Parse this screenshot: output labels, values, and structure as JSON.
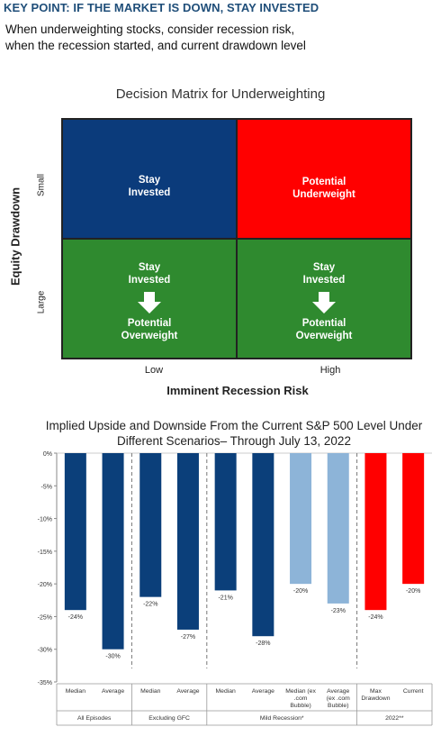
{
  "key_point": {
    "title": "KEY POINT: IF THE MARKET IS DOWN, STAY INVESTED",
    "subtitle_line1": "When underweighting stocks, consider recession risk,",
    "subtitle_line2": "when the recession started, and current drawdown level"
  },
  "matrix": {
    "title": "Decision Matrix for Underweighting",
    "y_axis_title": "Equity Drawdown",
    "y_small": "Small",
    "y_large": "Large",
    "x_low": "Low",
    "x_high": "High",
    "x_axis_title": "Imminent Recession Risk",
    "colors": {
      "blue": "#0b3b7b",
      "red": "#ff0000",
      "green": "#2f8a2f"
    },
    "cells": {
      "small_low": {
        "line1": "Stay",
        "line2": "Invested"
      },
      "small_high": {
        "line1": "Potential",
        "line2": "Underweight"
      },
      "large_low": {
        "line1": "Stay",
        "line2": "Invested",
        "line3": "Potential",
        "line4": "Overweight",
        "icon": "down-arrow-icon"
      },
      "large_high": {
        "line1": "Stay",
        "line2": "Invested",
        "line3": "Potential",
        "line4": "Overweight",
        "icon": "down-arrow-icon"
      }
    }
  },
  "chart_data": {
    "type": "bar",
    "title": "Implied Upside and Downside From the Current S&P 500 Level Under Different Scenarios– Through July 13, 2022",
    "ylim": [
      -35,
      0
    ],
    "yticks": [
      "0%",
      "-5%",
      "-10%",
      "-15%",
      "-20%",
      "-25%",
      "-30%",
      "-35%"
    ],
    "grid": false,
    "bars": [
      {
        "label": [
          "Median"
        ],
        "value": -24,
        "value_label": "-24%",
        "color": "#0b3f7a"
      },
      {
        "label": [
          "Average"
        ],
        "value": -30,
        "value_label": "-30%",
        "color": "#0b3f7a"
      },
      {
        "label": [
          "Median"
        ],
        "value": -22,
        "value_label": "-22%",
        "color": "#0b3f7a"
      },
      {
        "label": [
          "Average"
        ],
        "value": -27,
        "value_label": "-27%",
        "color": "#0b3f7a"
      },
      {
        "label": [
          "Median"
        ],
        "value": -21,
        "value_label": "-21%",
        "color": "#0b3f7a"
      },
      {
        "label": [
          "Average"
        ],
        "value": -28,
        "value_label": "-28%",
        "color": "#0b3f7a"
      },
      {
        "label": [
          "Median (ex",
          ".com",
          "Bubble)"
        ],
        "value": -20,
        "value_label": "-20%",
        "color": "#8db4d8"
      },
      {
        "label": [
          "Average",
          "(ex .com",
          "Bubble)"
        ],
        "value": -23,
        "value_label": "-23%",
        "color": "#8db4d8"
      },
      {
        "label": [
          "Max",
          "Drawdown"
        ],
        "value": -24,
        "value_label": "-24%",
        "color": "#ff0000"
      },
      {
        "label": [
          "Current"
        ],
        "value": -20,
        "value_label": "-20%",
        "color": "#ff0000"
      }
    ],
    "groups": [
      {
        "label": "All Episodes",
        "bars": [
          0,
          1
        ]
      },
      {
        "label": "Excluding GFC",
        "bars": [
          2,
          3
        ]
      },
      {
        "label": "Mild Recession*",
        "bars": [
          4,
          5,
          6,
          7
        ]
      },
      {
        "label": "2022**",
        "bars": [
          8,
          9
        ]
      }
    ]
  }
}
